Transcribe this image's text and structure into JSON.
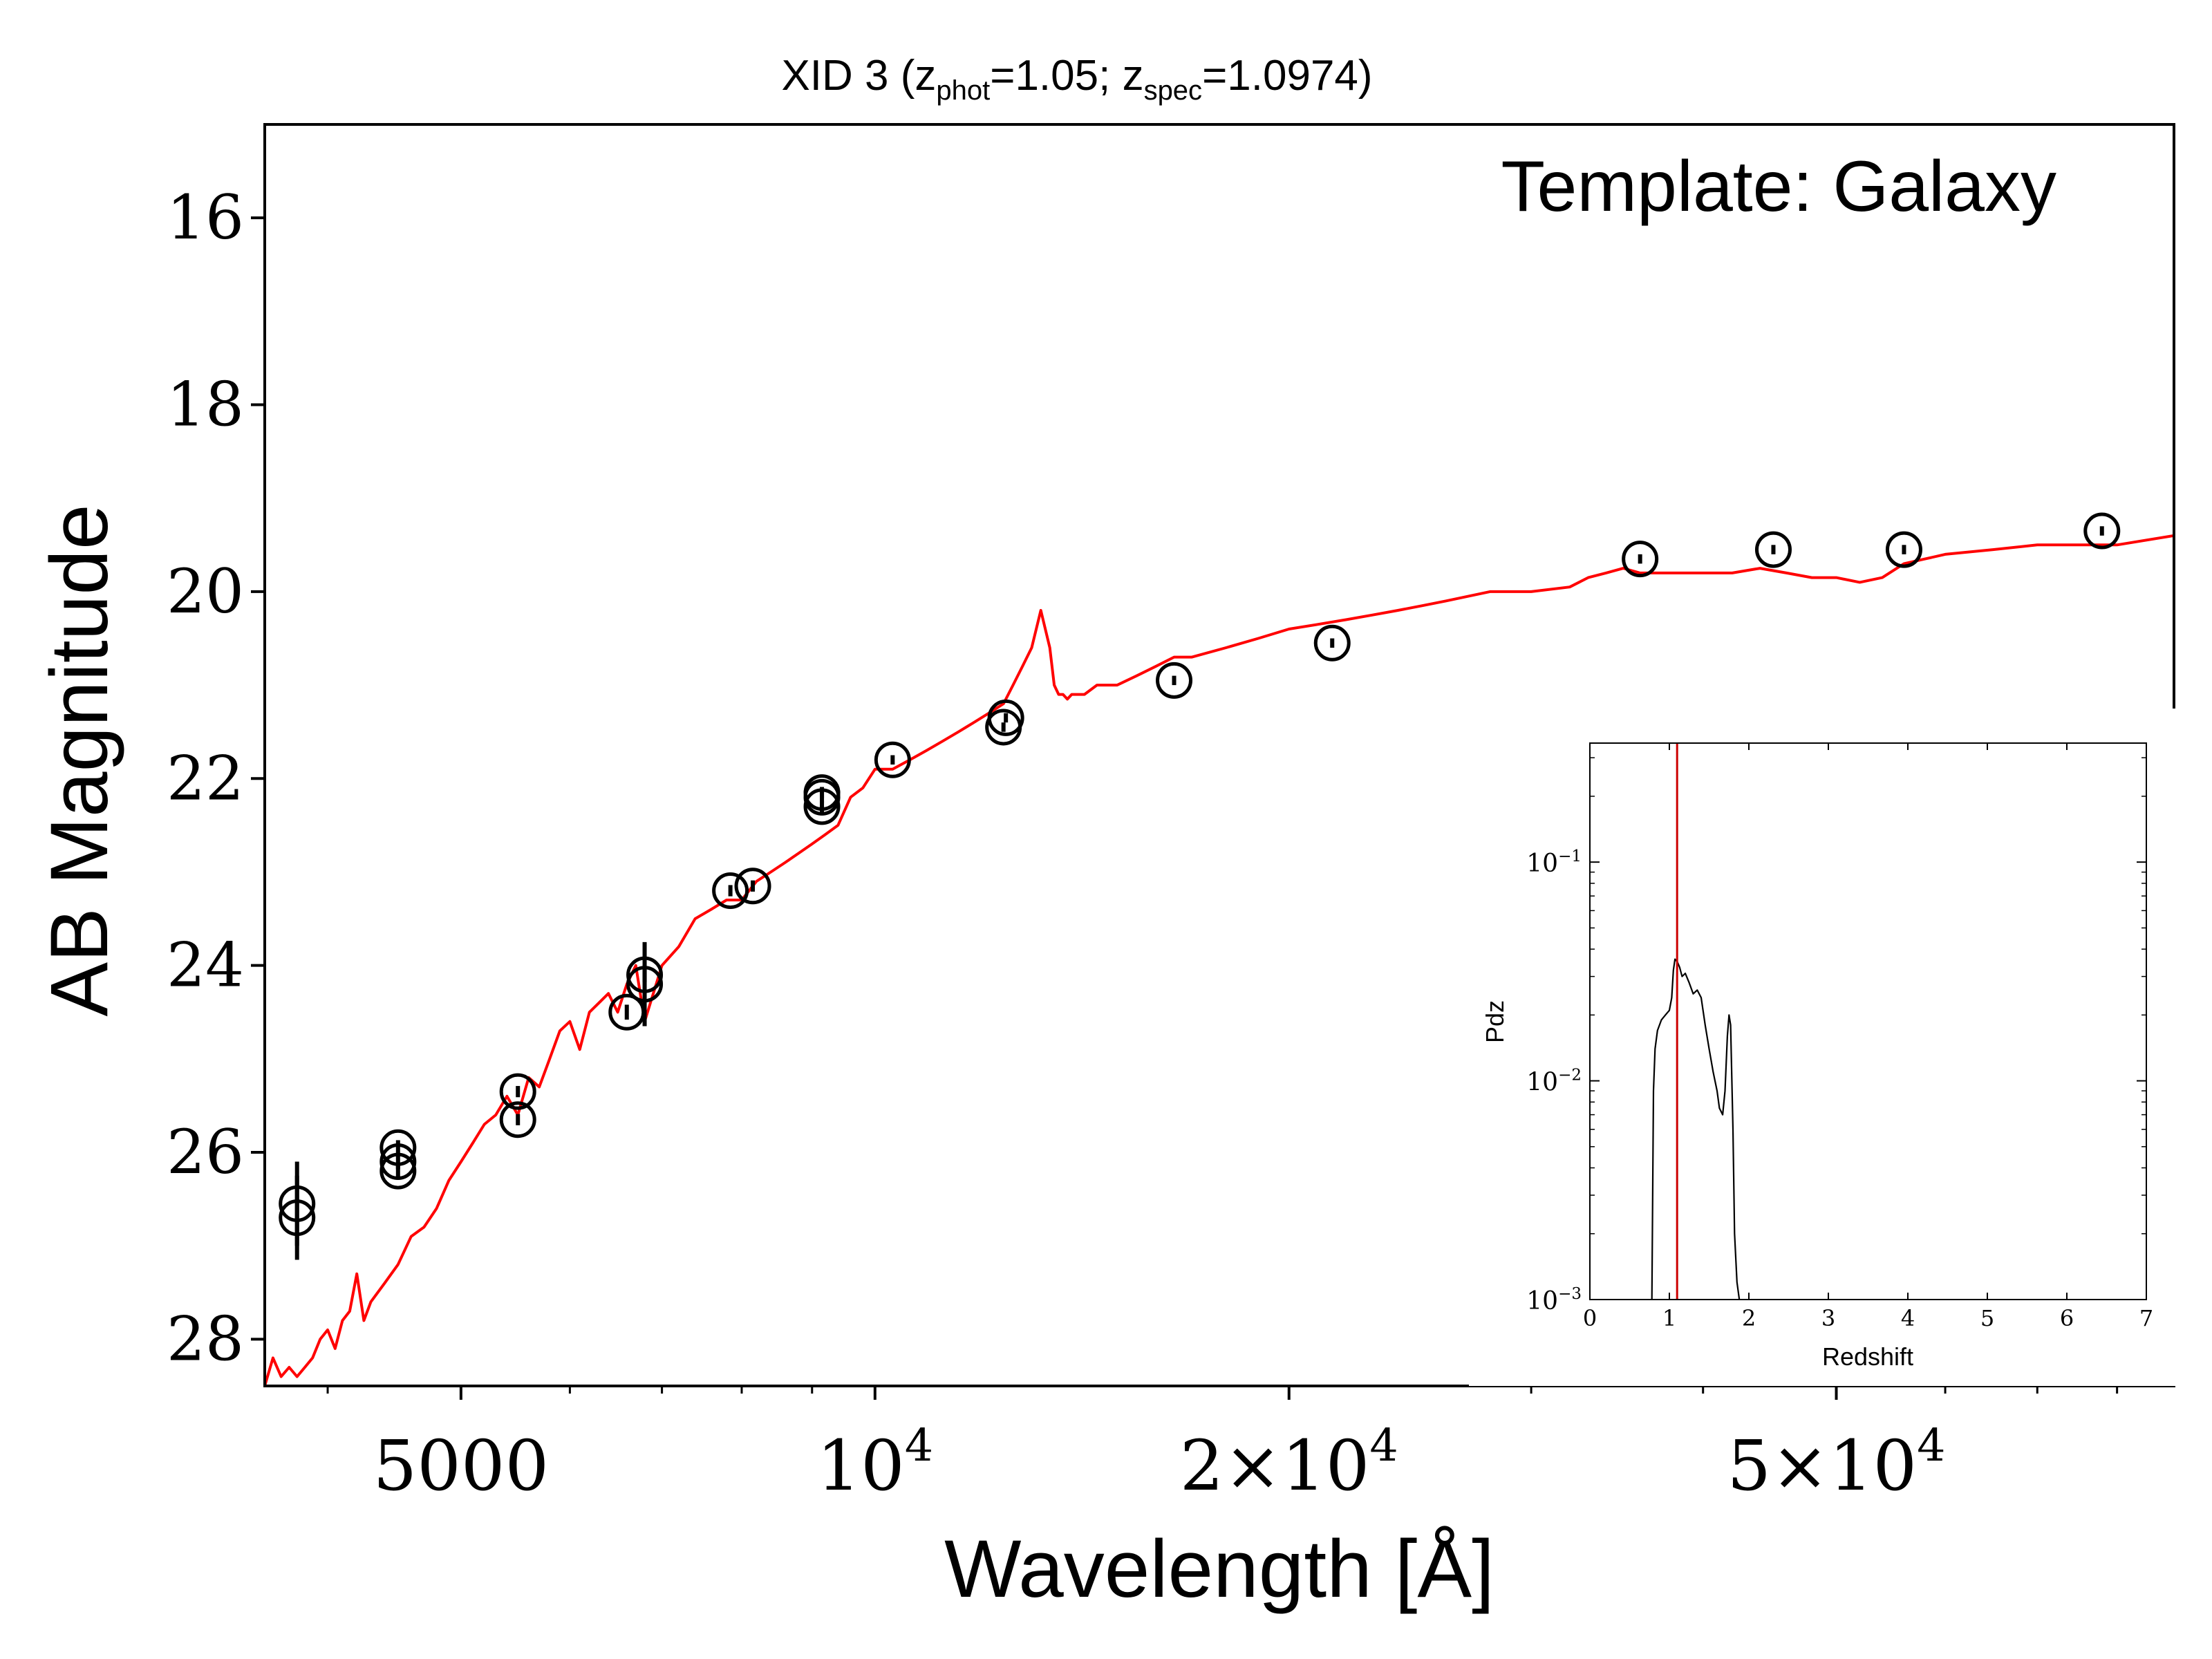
{
  "chart_data": [
    {
      "type": "scatter",
      "title_parts": {
        "pre": "XID 3 (z",
        "sub1": "phot",
        "mid": "=1.05; z",
        "sub2": "spec",
        "post": "=1.0974)"
      },
      "xlabel": "Wavelength [Å]",
      "ylabel": "AB Magnitude",
      "annotation": "Template: Galaxy",
      "xscale": "log",
      "xlim": [
        3600,
        88000
      ],
      "ylim": [
        28.5,
        15.0
      ],
      "y_inverted": true,
      "xticks": [
        {
          "value": 5000,
          "label": "5000"
        },
        {
          "value": 10000,
          "base": "10",
          "exp": "4"
        },
        {
          "value": 20000,
          "coef": "2×",
          "base": "10",
          "exp": "4"
        },
        {
          "value": 50000,
          "coef": "5×",
          "base": "10",
          "exp": "4"
        }
      ],
      "yticks": [
        16,
        18,
        20,
        22,
        24,
        26,
        28
      ],
      "colors": {
        "model": "#ff0000",
        "points": "#000000"
      },
      "series": [
        {
          "kind": "model-line",
          "x": [
            3600,
            3650,
            3700,
            3750,
            3800,
            3850,
            3900,
            3950,
            4000,
            4050,
            4100,
            4150,
            4200,
            4250,
            4300,
            4400,
            4500,
            4600,
            4700,
            4800,
            4900,
            5000,
            5100,
            5200,
            5300,
            5400,
            5500,
            5600,
            5700,
            5800,
            5900,
            6000,
            6100,
            6200,
            6300,
            6400,
            6500,
            6600,
            6700,
            6800,
            7000,
            7200,
            7400,
            7600,
            7800,
            8000,
            8200,
            8400,
            8600,
            8800,
            9000,
            9200,
            9400,
            9600,
            9800,
            10000,
            10300,
            10600,
            10900,
            11200,
            11500,
            11800,
            12100,
            12400,
            12600,
            12800,
            13000,
            13200,
            13400,
            13500,
            13600,
            13700,
            13800,
            13900,
            14000,
            14200,
            14500,
            15000,
            15500,
            16000,
            16500,
            17000,
            18000,
            19000,
            20000,
            21000,
            22000,
            23000,
            24000,
            25000,
            26000,
            28000,
            30000,
            32000,
            33000,
            34000,
            35000,
            36000,
            38000,
            40000,
            42000,
            44000,
            46000,
            48000,
            50000,
            52000,
            54000,
            56000,
            58000,
            60000,
            65000,
            70000,
            75000,
            80000,
            88000
          ],
          "y": [
            28.5,
            28.2,
            28.4,
            28.3,
            28.4,
            28.3,
            28.2,
            28.0,
            27.9,
            28.1,
            27.8,
            27.7,
            27.3,
            27.8,
            27.6,
            27.4,
            27.2,
            26.9,
            26.8,
            26.6,
            26.3,
            26.1,
            25.9,
            25.7,
            25.6,
            25.4,
            25.6,
            25.2,
            25.3,
            25.0,
            24.7,
            24.6,
            24.9,
            24.5,
            24.4,
            24.3,
            24.5,
            24.2,
            24.0,
            24.6,
            24.0,
            23.8,
            23.5,
            23.4,
            23.3,
            23.3,
            23.1,
            23.0,
            22.9,
            22.8,
            22.7,
            22.6,
            22.5,
            22.2,
            22.1,
            21.9,
            21.9,
            21.8,
            21.7,
            21.6,
            21.5,
            21.4,
            21.3,
            21.2,
            21.0,
            20.8,
            20.6,
            20.2,
            20.6,
            21.0,
            21.1,
            21.1,
            21.15,
            21.1,
            21.1,
            21.1,
            21.0,
            21.0,
            20.9,
            20.8,
            20.7,
            20.7,
            20.6,
            20.5,
            20.4,
            20.35,
            20.3,
            20.25,
            20.2,
            20.15,
            20.1,
            20.0,
            20.0,
            19.95,
            19.85,
            19.8,
            19.75,
            19.8,
            19.8,
            19.8,
            19.8,
            19.75,
            19.8,
            19.85,
            19.85,
            19.9,
            19.85,
            19.7,
            19.65,
            19.6,
            19.55,
            19.5,
            19.5,
            19.5,
            19.4
          ]
        },
        {
          "kind": "photometry",
          "x": [
            3800,
            3800,
            4500,
            4500,
            4500,
            5500,
            5500,
            6600,
            6800,
            6800,
            7850,
            8150,
            9150,
            9150,
            9150,
            10300,
            12400,
            12450,
            16500,
            21500,
            36000,
            45000,
            56000,
            78000
          ],
          "y": [
            26.7,
            26.55,
            26.2,
            26.1,
            25.95,
            25.65,
            25.35,
            24.5,
            24.2,
            24.1,
            23.2,
            23.15,
            22.3,
            22.2,
            22.15,
            21.8,
            21.45,
            21.35,
            20.95,
            20.55,
            19.65,
            19.55,
            19.55,
            19.35
          ],
          "y_err": [
            0.45,
            0.45,
            0.08,
            0.08,
            0.08,
            0.06,
            0.06,
            0.08,
            0.45,
            0.08,
            0.06,
            0.06,
            0.06,
            0.06,
            0.06,
            0.05,
            0.05,
            0.05,
            0.05,
            0.05,
            0.05,
            0.05,
            0.05,
            0.05
          ]
        }
      ]
    },
    {
      "type": "line",
      "xlabel": "Redshift",
      "ylabel": "Pdz",
      "xscale": "linear",
      "yscale": "log",
      "xlim": [
        0,
        7
      ],
      "ylim": [
        0.001,
        0.35
      ],
      "xticks": [
        0,
        1,
        2,
        3,
        4,
        5,
        6,
        7
      ],
      "yticks": [
        {
          "value": 0.1,
          "base": "10",
          "exp": "−1"
        },
        {
          "value": 0.01,
          "base": "10",
          "exp": "−2"
        },
        {
          "value": 0.001,
          "base": "10",
          "exp": "−3"
        }
      ],
      "redshift_marker": 1.0974,
      "colors": {
        "curve": "#000000",
        "marker": "#cc0000"
      },
      "series": [
        {
          "kind": "pdz",
          "x": [
            0.78,
            0.8,
            0.82,
            0.85,
            0.9,
            0.95,
            1.0,
            1.03,
            1.05,
            1.07,
            1.1,
            1.13,
            1.16,
            1.2,
            1.25,
            1.3,
            1.35,
            1.4,
            1.45,
            1.5,
            1.55,
            1.6,
            1.63,
            1.67,
            1.7,
            1.73,
            1.75,
            1.77,
            1.8,
            1.82,
            1.85,
            1.88
          ],
          "y": [
            0.001,
            0.009,
            0.014,
            0.017,
            0.019,
            0.02,
            0.021,
            0.024,
            0.032,
            0.036,
            0.035,
            0.033,
            0.03,
            0.031,
            0.028,
            0.025,
            0.026,
            0.024,
            0.018,
            0.014,
            0.011,
            0.009,
            0.0075,
            0.007,
            0.009,
            0.016,
            0.02,
            0.018,
            0.006,
            0.002,
            0.0012,
            0.001
          ]
        }
      ]
    }
  ]
}
